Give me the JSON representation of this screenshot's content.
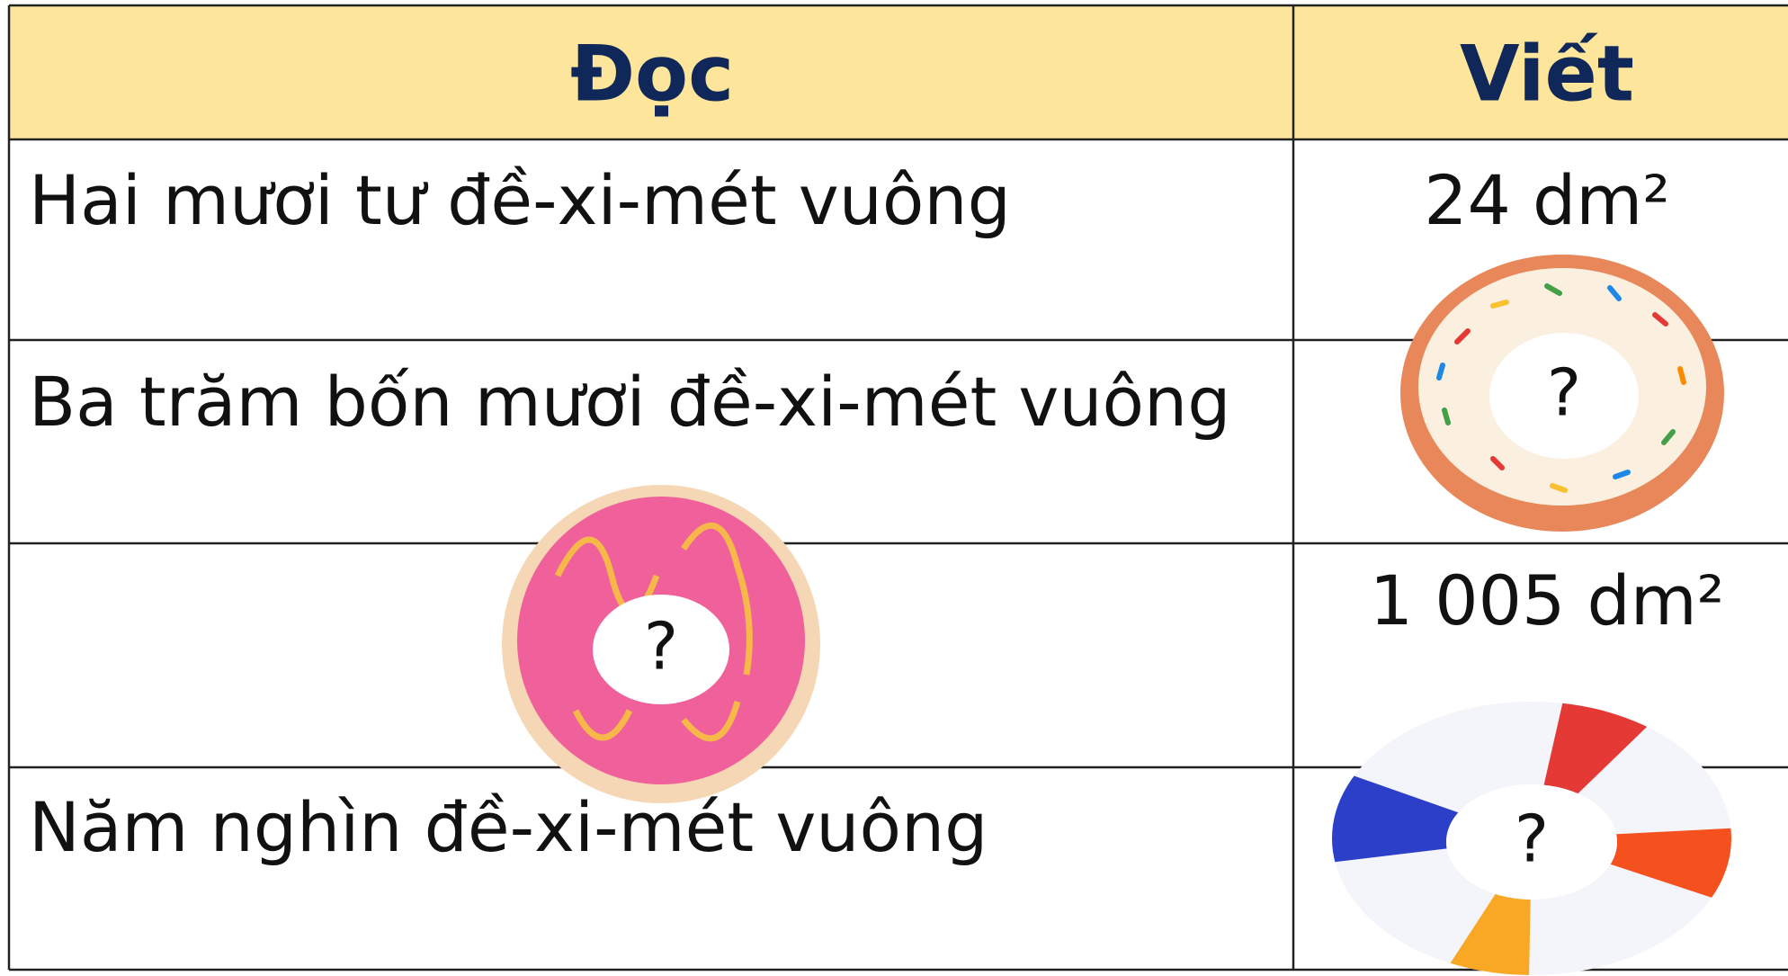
{
  "table": {
    "header": [
      "Đọc",
      "Viết"
    ],
    "rows": [
      [
        "Hai mươi tư đề-xi-mét vuông",
        "24 dm²"
      ],
      [
        "Ba trăm bốn mươi đề-xi-mét vuông",
        "?"
      ],
      [
        "?",
        "1 005 dm²"
      ],
      [
        "Năm nghìn đề-xi-mét vuông",
        "?"
      ]
    ]
  }
}
